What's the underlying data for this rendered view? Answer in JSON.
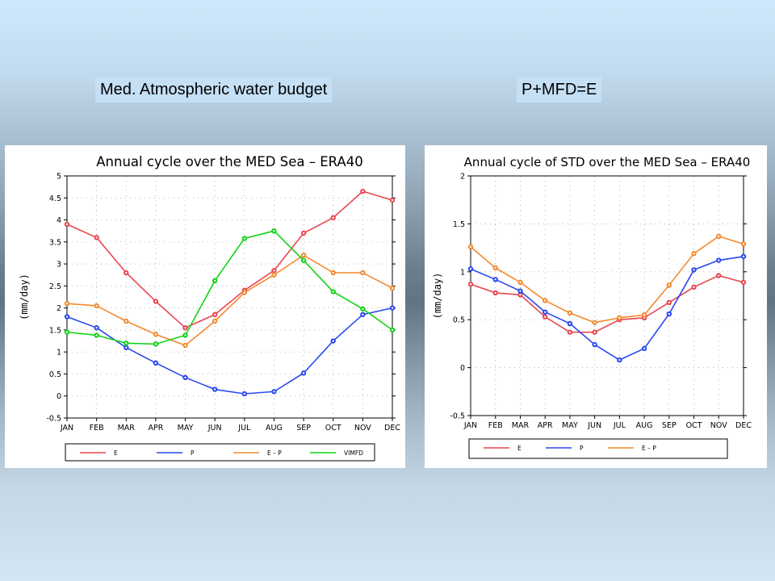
{
  "headings": {
    "left": "Med. Atmospheric water budget",
    "right": "P+MFD=E"
  },
  "chart_data": [
    {
      "type": "line",
      "title": "Annual cycle over the MED Sea – ERA40",
      "ylabel": "(mm/day)",
      "xlabel": "",
      "categories": [
        "JAN",
        "FEB",
        "MAR",
        "APR",
        "MAY",
        "JUN",
        "JUL",
        "AUG",
        "SEP",
        "OCT",
        "NOV",
        "DEC"
      ],
      "ylim": [
        -0.5,
        5
      ],
      "yticks": [
        -0.5,
        0,
        0.5,
        1,
        1.5,
        2,
        2.5,
        3,
        3.5,
        4,
        4.5,
        5
      ],
      "ytick_labels": [
        "-0.5",
        "0",
        "0.5",
        "1",
        "1.5",
        "2",
        "2.5",
        "3",
        "3.5",
        "4",
        "4.5",
        "5"
      ],
      "grid": true,
      "legend_position": "bottom",
      "series": [
        {
          "name": "E",
          "color": "#e8474f",
          "values": [
            3.9,
            3.6,
            2.8,
            2.15,
            1.55,
            1.85,
            2.4,
            2.85,
            3.7,
            4.05,
            4.65,
            4.45
          ]
        },
        {
          "name": "P",
          "color": "#2a48f0",
          "values": [
            1.8,
            1.55,
            1.1,
            0.75,
            0.42,
            0.15,
            0.05,
            0.1,
            0.52,
            1.25,
            1.85,
            2.0
          ]
        },
        {
          "name": "E – P",
          "color": "#f28a2e",
          "values": [
            2.1,
            2.05,
            1.7,
            1.4,
            1.15,
            1.7,
            2.35,
            2.75,
            3.2,
            2.8,
            2.8,
            2.45
          ]
        },
        {
          "name": "VIMFD",
          "color": "#14d214",
          "values": [
            1.45,
            1.38,
            1.2,
            1.18,
            1.38,
            2.62,
            3.58,
            3.75,
            3.08,
            2.37,
            1.98,
            1.5
          ]
        }
      ]
    },
    {
      "type": "line",
      "title": "Annual cycle of STD over the MED Sea – ERA40",
      "ylabel": "(mm/day)",
      "xlabel": "",
      "categories": [
        "JAN",
        "FEB",
        "MAR",
        "APR",
        "MAY",
        "JUN",
        "JUL",
        "AUG",
        "SEP",
        "OCT",
        "NOV",
        "DEC"
      ],
      "ylim": [
        -0.5,
        2
      ],
      "yticks": [
        -0.5,
        0,
        0.5,
        1,
        1.5,
        2
      ],
      "ytick_labels": [
        "-0.5",
        "0",
        "0.5",
        "1",
        "1.5",
        "2"
      ],
      "grid": true,
      "legend_position": "bottom",
      "series": [
        {
          "name": "E",
          "color": "#e8474f",
          "values": [
            0.87,
            0.78,
            0.76,
            0.53,
            0.37,
            0.37,
            0.5,
            0.52,
            0.68,
            0.84,
            0.96,
            0.89
          ]
        },
        {
          "name": "P",
          "color": "#2a48f0",
          "values": [
            1.03,
            0.92,
            0.8,
            0.58,
            0.46,
            0.24,
            0.08,
            0.2,
            0.56,
            1.02,
            1.12,
            1.16
          ]
        },
        {
          "name": "E – P",
          "color": "#f28a2e",
          "values": [
            1.26,
            1.04,
            0.89,
            0.7,
            0.57,
            0.47,
            0.52,
            0.55,
            0.86,
            1.19,
            1.37,
            1.29
          ]
        }
      ]
    }
  ]
}
